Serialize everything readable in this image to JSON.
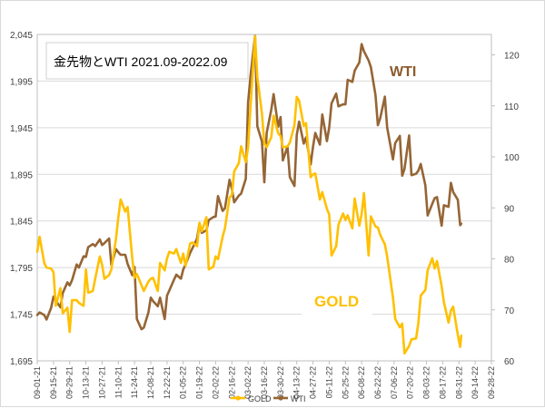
{
  "chart_data": {
    "type": "line",
    "title": "金先物とWTI 2021.09-2022.09",
    "xlabel": "",
    "ylabel_left": "",
    "ylabel_right": "",
    "x_tick_labels": [
      "09-01-21",
      "09-15-21",
      "09-29-21",
      "10-13-21",
      "10-27-21",
      "11-10-21",
      "11-24-21",
      "12-08-21",
      "12-22-21",
      "01-05-22",
      "01-19-22",
      "02-02-22",
      "02-16-22",
      "03-02-22",
      "03-16-22",
      "03-30-22",
      "04-13-22",
      "04-27-22",
      "05-11-22",
      "05-25-22",
      "06-08-22",
      "06-22-22",
      "07-06-22",
      "07-20-22",
      "08-03-22",
      "08-17-22",
      "08-31-22",
      "09-14-22",
      "09-28-22"
    ],
    "y_left": {
      "range": [
        1695,
        2045
      ],
      "ticks": [
        "1,695",
        "1,745",
        "1,795",
        "1,845",
        "1,895",
        "1,945",
        "1,995",
        "2,045"
      ]
    },
    "y_right": {
      "range": [
        60,
        124
      ],
      "ticks": [
        "60",
        "70",
        "80",
        "90",
        "100",
        "110",
        "120"
      ]
    },
    "grid": true,
    "legend": {
      "placement": "bottom",
      "entries": [
        "GOLD",
        "WTI"
      ]
    },
    "annotations": [
      {
        "text": "WTI",
        "color": "#8b5a2b"
      },
      {
        "text": "GOLD",
        "color": "#ffc000"
      }
    ],
    "series": [
      {
        "name": "GOLD",
        "axis": "left",
        "color": "#ffc000",
        "points": [
          [
            "2021-09-01",
            1812
          ],
          [
            "2021-09-03",
            1828
          ],
          [
            "2021-09-07",
            1800
          ],
          [
            "2021-09-09",
            1795
          ],
          [
            "2021-09-13",
            1794
          ],
          [
            "2021-09-15",
            1790
          ],
          [
            "2021-09-17",
            1754
          ],
          [
            "2021-09-21",
            1773
          ],
          [
            "2021-09-23",
            1746
          ],
          [
            "2021-09-27",
            1752
          ],
          [
            "2021-09-29",
            1726
          ],
          [
            "2021-10-01",
            1760
          ],
          [
            "2021-10-05",
            1760
          ],
          [
            "2021-10-07",
            1757
          ],
          [
            "2021-10-11",
            1754
          ],
          [
            "2021-10-13",
            1793
          ],
          [
            "2021-10-15",
            1768
          ],
          [
            "2021-10-19",
            1770
          ],
          [
            "2021-10-21",
            1783
          ],
          [
            "2021-10-25",
            1807
          ],
          [
            "2021-10-27",
            1798
          ],
          [
            "2021-10-29",
            1783
          ],
          [
            "2021-11-02",
            1787
          ],
          [
            "2021-11-04",
            1793
          ],
          [
            "2021-11-08",
            1826
          ],
          [
            "2021-11-10",
            1849
          ],
          [
            "2021-11-12",
            1868
          ],
          [
            "2021-11-16",
            1855
          ],
          [
            "2021-11-18",
            1860
          ],
          [
            "2021-11-22",
            1805
          ],
          [
            "2021-11-24",
            1784
          ],
          [
            "2021-11-26",
            1788
          ],
          [
            "2021-11-30",
            1776
          ],
          [
            "2021-12-02",
            1770
          ],
          [
            "2021-12-06",
            1780
          ],
          [
            "2021-12-08",
            1783
          ],
          [
            "2021-12-10",
            1784
          ],
          [
            "2021-12-14",
            1770
          ],
          [
            "2021-12-16",
            1800
          ],
          [
            "2021-12-20",
            1792
          ],
          [
            "2021-12-22",
            1805
          ],
          [
            "2021-12-24",
            1812
          ],
          [
            "2021-12-28",
            1810
          ],
          [
            "2021-12-30",
            1815
          ],
          [
            "2022-01-03",
            1800
          ],
          [
            "2022-01-05",
            1810
          ],
          [
            "2022-01-07",
            1797
          ],
          [
            "2022-01-11",
            1821
          ],
          [
            "2022-01-13",
            1822
          ],
          [
            "2022-01-17",
            1818
          ],
          [
            "2022-01-19",
            1843
          ],
          [
            "2022-01-21",
            1834
          ],
          [
            "2022-01-25",
            1849
          ],
          [
            "2022-01-27",
            1793
          ],
          [
            "2022-01-31",
            1796
          ],
          [
            "2022-02-02",
            1807
          ],
          [
            "2022-02-04",
            1804
          ],
          [
            "2022-02-08",
            1828
          ],
          [
            "2022-02-10",
            1837
          ],
          [
            "2022-02-14",
            1870
          ],
          [
            "2022-02-16",
            1873
          ],
          [
            "2022-02-18",
            1898
          ],
          [
            "2022-02-22",
            1907
          ],
          [
            "2022-02-24",
            1925
          ],
          [
            "2022-02-28",
            1908
          ],
          [
            "2022-03-02",
            1924
          ],
          [
            "2022-03-04",
            1966
          ],
          [
            "2022-03-08",
            2043
          ],
          [
            "2022-03-10",
            1999
          ],
          [
            "2022-03-14",
            1960
          ],
          [
            "2022-03-16",
            1928
          ],
          [
            "2022-03-18",
            1924
          ],
          [
            "2022-03-22",
            1935
          ],
          [
            "2022-03-24",
            1958
          ],
          [
            "2022-03-28",
            1939
          ],
          [
            "2022-03-30",
            1936
          ],
          [
            "2022-04-01",
            1924
          ],
          [
            "2022-04-05",
            1925
          ],
          [
            "2022-04-07",
            1929
          ],
          [
            "2022-04-11",
            1948
          ],
          [
            "2022-04-13",
            1978
          ],
          [
            "2022-04-15",
            1974
          ],
          [
            "2022-04-19",
            1947
          ],
          [
            "2022-04-21",
            1950
          ],
          [
            "2022-04-25",
            1892
          ],
          [
            "2022-04-27",
            1895
          ],
          [
            "2022-04-29",
            1896
          ],
          [
            "2022-05-03",
            1868
          ],
          [
            "2022-05-05",
            1876
          ],
          [
            "2022-05-09",
            1858
          ],
          [
            "2022-05-11",
            1852
          ],
          [
            "2022-05-13",
            1808
          ],
          [
            "2022-05-17",
            1818
          ],
          [
            "2022-05-19",
            1841
          ],
          [
            "2022-05-23",
            1853
          ],
          [
            "2022-05-25",
            1846
          ],
          [
            "2022-05-27",
            1851
          ],
          [
            "2022-05-31",
            1837
          ],
          [
            "2022-06-02",
            1869
          ],
          [
            "2022-06-06",
            1840
          ],
          [
            "2022-06-08",
            1852
          ],
          [
            "2022-06-10",
            1875
          ],
          [
            "2022-06-14",
            1808
          ],
          [
            "2022-06-16",
            1850
          ],
          [
            "2022-06-20",
            1839
          ],
          [
            "2022-06-22",
            1838
          ],
          [
            "2022-06-24",
            1830
          ],
          [
            "2022-06-28",
            1820
          ],
          [
            "2022-06-30",
            1807
          ],
          [
            "2022-07-05",
            1763
          ],
          [
            "2022-07-07",
            1740
          ],
          [
            "2022-07-11",
            1731
          ],
          [
            "2022-07-13",
            1735
          ],
          [
            "2022-07-15",
            1703
          ],
          [
            "2022-07-19",
            1711
          ],
          [
            "2022-07-21",
            1718
          ],
          [
            "2022-07-25",
            1719
          ],
          [
            "2022-07-27",
            1736
          ],
          [
            "2022-07-29",
            1765
          ],
          [
            "2022-08-02",
            1771
          ],
          [
            "2022-08-04",
            1792
          ],
          [
            "2022-08-08",
            1805
          ],
          [
            "2022-08-10",
            1794
          ],
          [
            "2022-08-12",
            1802
          ],
          [
            "2022-08-16",
            1775
          ],
          [
            "2022-08-18",
            1758
          ],
          [
            "2022-08-22",
            1736
          ],
          [
            "2022-08-24",
            1749
          ],
          [
            "2022-08-26",
            1753
          ],
          [
            "2022-08-30",
            1723
          ],
          [
            "2022-09-01",
            1710
          ],
          [
            "2022-09-02",
            1722
          ]
        ]
      },
      {
        "name": "WTI",
        "axis": "right",
        "color": "#956535",
        "points": [
          [
            "2021-09-01",
            69
          ],
          [
            "2021-09-03",
            69.5
          ],
          [
            "2021-09-07",
            69
          ],
          [
            "2021-09-09",
            68.1
          ],
          [
            "2021-09-13",
            70.4
          ],
          [
            "2021-09-15",
            72.6
          ],
          [
            "2021-09-17",
            71.8
          ],
          [
            "2021-09-21",
            70.5
          ],
          [
            "2021-09-23",
            73.3
          ],
          [
            "2021-09-27",
            75.4
          ],
          [
            "2021-09-29",
            74.8
          ],
          [
            "2021-10-01",
            75.8
          ],
          [
            "2021-10-05",
            78.9
          ],
          [
            "2021-10-07",
            78.3
          ],
          [
            "2021-10-11",
            80.5
          ],
          [
            "2021-10-13",
            80.4
          ],
          [
            "2021-10-15",
            82.3
          ],
          [
            "2021-10-19",
            82.9
          ],
          [
            "2021-10-21",
            82.5
          ],
          [
            "2021-10-25",
            83.8
          ],
          [
            "2021-10-27",
            82.7
          ],
          [
            "2021-10-29",
            83.1
          ],
          [
            "2021-11-02",
            84.0
          ],
          [
            "2021-11-04",
            78.8
          ],
          [
            "2021-11-08",
            81.9
          ],
          [
            "2021-11-10",
            81.3
          ],
          [
            "2021-11-12",
            80.8
          ],
          [
            "2021-11-16",
            80.8
          ],
          [
            "2021-11-18",
            79.0
          ],
          [
            "2021-11-22",
            76.8
          ],
          [
            "2021-11-24",
            78.4
          ],
          [
            "2021-11-26",
            68.2
          ],
          [
            "2021-11-30",
            66.2
          ],
          [
            "2021-12-02",
            66.5
          ],
          [
            "2021-12-06",
            69.5
          ],
          [
            "2021-12-08",
            72.4
          ],
          [
            "2021-12-10",
            71.7
          ],
          [
            "2021-12-14",
            70.7
          ],
          [
            "2021-12-16",
            72.4
          ],
          [
            "2021-12-20",
            68.2
          ],
          [
            "2021-12-22",
            72.8
          ],
          [
            "2021-12-24",
            73.8
          ],
          [
            "2021-12-28",
            75.9
          ],
          [
            "2021-12-30",
            76.9
          ],
          [
            "2022-01-03",
            76.1
          ],
          [
            "2022-01-05",
            77.9
          ],
          [
            "2022-01-07",
            78.9
          ],
          [
            "2022-01-11",
            81.2
          ],
          [
            "2022-01-13",
            82.1
          ],
          [
            "2022-01-17",
            84.0
          ],
          [
            "2022-01-19",
            86.9
          ],
          [
            "2022-01-21",
            85.1
          ],
          [
            "2022-01-25",
            85.6
          ],
          [
            "2022-01-27",
            87.6
          ],
          [
            "2022-01-31",
            88.2
          ],
          [
            "2022-02-02",
            88.3
          ],
          [
            "2022-02-04",
            92.3
          ],
          [
            "2022-02-08",
            89.4
          ],
          [
            "2022-02-10",
            89.9
          ],
          [
            "2022-02-14",
            95.5
          ],
          [
            "2022-02-16",
            93.7
          ],
          [
            "2022-02-18",
            91.1
          ],
          [
            "2022-02-22",
            92.4
          ],
          [
            "2022-02-24",
            92.8
          ],
          [
            "2022-02-28",
            95.7
          ],
          [
            "2022-03-02",
            110.6
          ],
          [
            "2022-03-04",
            115.7
          ],
          [
            "2022-03-08",
            123.7
          ],
          [
            "2022-03-10",
            106.0
          ],
          [
            "2022-03-14",
            103.0
          ],
          [
            "2022-03-16",
            95.0
          ],
          [
            "2022-03-18",
            104.7
          ],
          [
            "2022-03-22",
            109.3
          ],
          [
            "2022-03-24",
            112.3
          ],
          [
            "2022-03-28",
            105.9
          ],
          [
            "2022-03-30",
            107.8
          ],
          [
            "2022-04-01",
            99.3
          ],
          [
            "2022-04-05",
            102.0
          ],
          [
            "2022-04-07",
            96.0
          ],
          [
            "2022-04-11",
            94.3
          ],
          [
            "2022-04-13",
            104.3
          ],
          [
            "2022-04-15",
            106.9
          ],
          [
            "2022-04-19",
            102.6
          ],
          [
            "2022-04-21",
            103.8
          ],
          [
            "2022-04-25",
            98.5
          ],
          [
            "2022-04-27",
            102.0
          ],
          [
            "2022-04-29",
            104.7
          ],
          [
            "2022-05-03",
            102.4
          ],
          [
            "2022-05-05",
            108.3
          ],
          [
            "2022-05-09",
            103.1
          ],
          [
            "2022-05-11",
            105.7
          ],
          [
            "2022-05-13",
            110.5
          ],
          [
            "2022-05-17",
            112.4
          ],
          [
            "2022-05-19",
            109.9
          ],
          [
            "2022-05-23",
            110.3
          ],
          [
            "2022-05-25",
            110.3
          ],
          [
            "2022-05-27",
            115.1
          ],
          [
            "2022-05-31",
            114.7
          ],
          [
            "2022-06-02",
            116.9
          ],
          [
            "2022-06-06",
            118.5
          ],
          [
            "2022-06-08",
            122.1
          ],
          [
            "2022-06-10",
            120.7
          ],
          [
            "2022-06-14",
            118.9
          ],
          [
            "2022-06-16",
            117.6
          ],
          [
            "2022-06-20",
            112.1
          ],
          [
            "2022-06-22",
            106.2
          ],
          [
            "2022-06-24",
            107.6
          ],
          [
            "2022-06-28",
            111.8
          ],
          [
            "2022-06-30",
            105.8
          ],
          [
            "2022-07-05",
            99.5
          ],
          [
            "2022-07-07",
            102.7
          ],
          [
            "2022-07-11",
            104.1
          ],
          [
            "2022-07-13",
            96.3
          ],
          [
            "2022-07-15",
            97.6
          ],
          [
            "2022-07-19",
            104.2
          ],
          [
            "2022-07-21",
            96.4
          ],
          [
            "2022-07-25",
            96.7
          ],
          [
            "2022-07-27",
            97.3
          ],
          [
            "2022-07-29",
            98.6
          ],
          [
            "2022-08-02",
            94.4
          ],
          [
            "2022-08-04",
            88.5
          ],
          [
            "2022-08-08",
            90.8
          ],
          [
            "2022-08-10",
            91.9
          ],
          [
            "2022-08-12",
            92.1
          ],
          [
            "2022-08-16",
            86.5
          ],
          [
            "2022-08-18",
            90.5
          ],
          [
            "2022-08-22",
            90.2
          ],
          [
            "2022-08-24",
            94.9
          ],
          [
            "2022-08-26",
            93.1
          ],
          [
            "2022-08-30",
            91.6
          ],
          [
            "2022-09-01",
            86.6
          ],
          [
            "2022-09-02",
            86.9
          ]
        ]
      }
    ]
  }
}
